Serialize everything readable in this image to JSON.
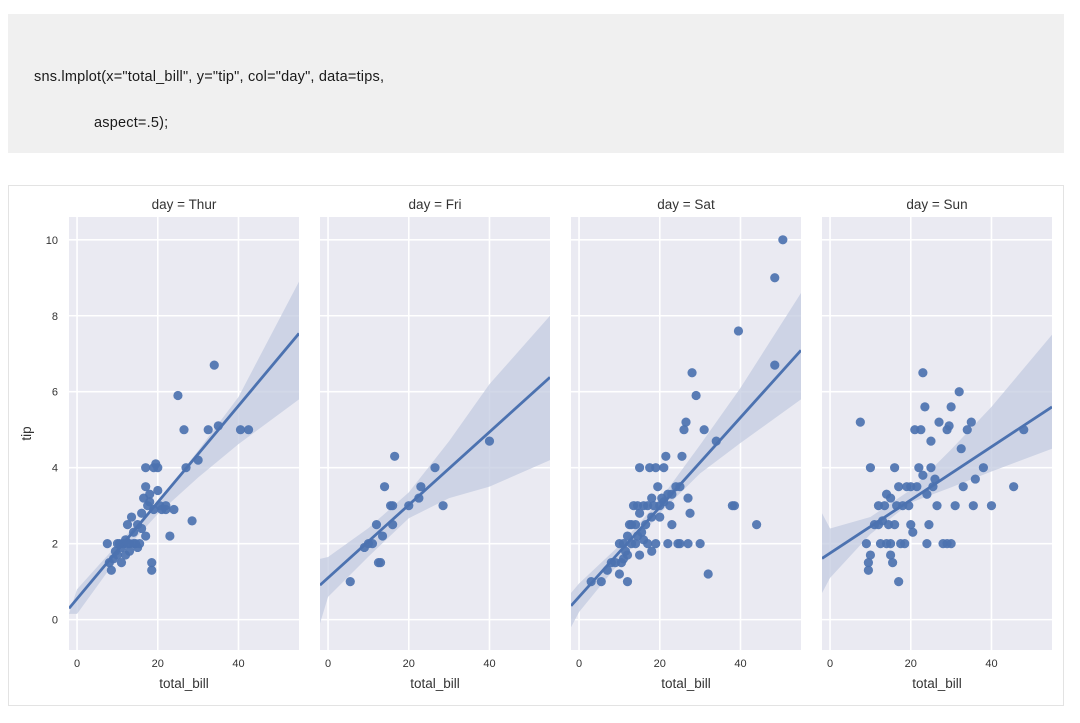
{
  "code": {
    "line1": "sns.lmplot(x=\"total_bill\", y=\"tip\", col=\"day\", data=tips,",
    "line2": "aspect=.5);"
  },
  "colors": {
    "panel_bg": "#eaeaf2",
    "grid": "#ffffff",
    "point": "#4c72b0",
    "line": "#4c72b0",
    "band": "#c3cbe0",
    "text": "#333333"
  },
  "chart_data": {
    "type": "scatter",
    "ylabel": "tip",
    "xlabel": "total_bill",
    "xlim": [
      -2,
      55
    ],
    "ylim": [
      -0.8,
      10.6
    ],
    "xticks": [
      0,
      20,
      40
    ],
    "yticks": [
      0,
      2,
      4,
      6,
      8,
      10
    ],
    "facets": [
      {
        "title": "day = Thur",
        "fit": {
          "intercept": 0.55,
          "slope": 0.127
        },
        "ci": [
          [
            -2,
            0.15,
            0.15
          ],
          [
            0,
            0.15,
            0.8
          ],
          [
            10,
            1.62,
            1.98
          ],
          [
            20,
            2.78,
            3.09
          ],
          [
            30,
            3.74,
            4.45
          ],
          [
            40,
            4.62,
            5.86
          ],
          [
            55,
            5.8,
            8.9
          ]
        ],
        "points": [
          [
            7.5,
            2
          ],
          [
            8,
            1.5
          ],
          [
            8.5,
            1.3
          ],
          [
            9,
            1.6
          ],
          [
            9.5,
            1.8
          ],
          [
            10,
            2
          ],
          [
            10,
            1.7
          ],
          [
            10.5,
            2
          ],
          [
            11,
            1.5
          ],
          [
            11,
            1.9
          ],
          [
            11.5,
            2
          ],
          [
            12,
            2.1
          ],
          [
            12,
            1.7
          ],
          [
            12.5,
            2
          ],
          [
            12.5,
            2.5
          ],
          [
            13,
            2
          ],
          [
            13,
            1.8
          ],
          [
            13.5,
            2.7
          ],
          [
            14,
            2.3
          ],
          [
            14,
            2
          ],
          [
            14.5,
            2
          ],
          [
            15,
            2.5
          ],
          [
            15,
            1.9
          ],
          [
            15.5,
            2
          ],
          [
            16,
            2.4
          ],
          [
            16,
            2.8
          ],
          [
            16.5,
            3.2
          ],
          [
            17,
            3.5
          ],
          [
            17,
            2.2
          ],
          [
            17,
            4
          ],
          [
            17.5,
            3
          ],
          [
            18,
            3.3
          ],
          [
            18,
            3.1
          ],
          [
            18.5,
            1.5
          ],
          [
            18.5,
            1.3
          ],
          [
            19,
            4
          ],
          [
            19,
            2.9
          ],
          [
            19.5,
            4.1
          ],
          [
            20,
            3.4
          ],
          [
            20,
            4
          ],
          [
            20.5,
            3
          ],
          [
            21,
            2.9
          ],
          [
            22,
            3
          ],
          [
            22,
            2.9
          ],
          [
            23,
            2.2
          ],
          [
            24,
            2.9
          ],
          [
            25,
            5.9
          ],
          [
            26.5,
            5
          ],
          [
            27,
            4
          ],
          [
            28.5,
            2.6
          ],
          [
            30,
            4.2
          ],
          [
            32.5,
            5
          ],
          [
            34,
            6.7
          ],
          [
            35,
            5.1
          ],
          [
            40.5,
            5
          ],
          [
            42.5,
            5
          ]
        ]
      },
      {
        "title": "day = Fri",
        "fit": {
          "intercept": 1.1,
          "slope": 0.096
        },
        "ci": [
          [
            -2,
            -0.1,
            1.6
          ],
          [
            0,
            0.6,
            1.65
          ],
          [
            10,
            1.66,
            2.41
          ],
          [
            20,
            2.67,
            3.35
          ],
          [
            30,
            3.2,
            4.7
          ],
          [
            40,
            3.5,
            6.2
          ],
          [
            55,
            4.2,
            8.0
          ]
        ],
        "points": [
          [
            5.5,
            1
          ],
          [
            9,
            1.9
          ],
          [
            10,
            2
          ],
          [
            11,
            2
          ],
          [
            12,
            2.5
          ],
          [
            12.5,
            1.5
          ],
          [
            13,
            1.5
          ],
          [
            13.5,
            2.2
          ],
          [
            14,
            3.5
          ],
          [
            15.5,
            3
          ],
          [
            16,
            3
          ],
          [
            16.5,
            4.3
          ],
          [
            16,
            2.5
          ],
          [
            20,
            3
          ],
          [
            22.5,
            3.2
          ],
          [
            23,
            3.5
          ],
          [
            26.5,
            4
          ],
          [
            28.5,
            3
          ],
          [
            40,
            4.7
          ]
        ]
      },
      {
        "title": "day = Sat",
        "fit": {
          "intercept": 0.6,
          "slope": 0.118
        },
        "ci": [
          [
            -2,
            -0.2,
            0.7
          ],
          [
            0,
            0.2,
            0.95
          ],
          [
            10,
            1.5,
            1.95
          ],
          [
            20,
            2.8,
            3.15
          ],
          [
            30,
            3.85,
            4.6
          ],
          [
            40,
            4.65,
            6.1
          ],
          [
            55,
            5.8,
            8.6
          ]
        ],
        "points": [
          [
            3,
            1
          ],
          [
            5.5,
            1
          ],
          [
            7,
            1.3
          ],
          [
            8,
            1.5
          ],
          [
            9,
            1.5
          ],
          [
            10,
            2
          ],
          [
            10,
            1.2
          ],
          [
            10.5,
            1.5
          ],
          [
            11,
            1.6
          ],
          [
            11,
            2
          ],
          [
            11.5,
            1.8
          ],
          [
            12,
            2.2
          ],
          [
            12,
            1
          ],
          [
            12,
            1.7
          ],
          [
            12.5,
            2.5
          ],
          [
            13,
            2.5
          ],
          [
            13,
            2
          ],
          [
            13.5,
            3
          ],
          [
            14,
            2
          ],
          [
            14,
            2.5
          ],
          [
            14.5,
            3
          ],
          [
            14.5,
            2.2
          ],
          [
            15,
            2.8
          ],
          [
            15,
            4
          ],
          [
            15,
            1.7
          ],
          [
            15.5,
            2.3
          ],
          [
            16,
            3
          ],
          [
            16,
            2.1
          ],
          [
            16.5,
            2.5
          ],
          [
            17,
            3
          ],
          [
            17,
            2
          ],
          [
            17.5,
            4
          ],
          [
            18,
            3.2
          ],
          [
            18,
            2.7
          ],
          [
            18,
            1.8
          ],
          [
            18.5,
            3
          ],
          [
            19,
            4
          ],
          [
            19,
            2
          ],
          [
            19.5,
            3.5
          ],
          [
            20,
            3
          ],
          [
            20,
            2.7
          ],
          [
            20.5,
            3.2
          ],
          [
            21,
            3.1
          ],
          [
            21,
            4
          ],
          [
            21.5,
            4.3
          ],
          [
            22,
            3.3
          ],
          [
            22,
            2
          ],
          [
            22.5,
            3
          ],
          [
            23,
            3.3
          ],
          [
            23,
            2.5
          ],
          [
            24,
            3.5
          ],
          [
            24.5,
            2
          ],
          [
            25,
            2
          ],
          [
            25,
            3.5
          ],
          [
            25.5,
            4.3
          ],
          [
            26,
            5
          ],
          [
            26.5,
            5.2
          ],
          [
            27,
            3.2
          ],
          [
            27,
            2
          ],
          [
            27.5,
            2.8
          ],
          [
            28,
            6.5
          ],
          [
            29,
            5.9
          ],
          [
            30,
            2
          ],
          [
            31,
            5
          ],
          [
            32,
            1.2
          ],
          [
            34,
            4.7
          ],
          [
            38,
            3
          ],
          [
            38.5,
            3
          ],
          [
            39.5,
            7.6
          ],
          [
            44,
            2.5
          ],
          [
            48.5,
            6.7
          ],
          [
            48.5,
            9
          ],
          [
            50.5,
            10
          ]
        ]
      },
      {
        "title": "day = Sun",
        "fit": {
          "intercept": 1.75,
          "slope": 0.07
        },
        "ci": [
          [
            -2,
            0.7,
            2.8
          ],
          [
            0,
            1.1,
            2.4
          ],
          [
            10,
            2.25,
            2.7
          ],
          [
            20,
            3.08,
            3.42
          ],
          [
            30,
            3.48,
            4.48
          ],
          [
            40,
            3.9,
            5.6
          ],
          [
            55,
            4.5,
            7.5
          ]
        ],
        "points": [
          [
            7.5,
            5.2
          ],
          [
            9,
            2
          ],
          [
            9.5,
            1.5
          ],
          [
            9.5,
            1.3
          ],
          [
            10,
            4
          ],
          [
            10,
            1.7
          ],
          [
            11,
            2.5
          ],
          [
            12,
            3
          ],
          [
            12,
            2.5
          ],
          [
            12.5,
            2
          ],
          [
            13,
            2.6
          ],
          [
            13.5,
            3
          ],
          [
            14,
            2
          ],
          [
            14,
            3.3
          ],
          [
            14.5,
            2.5
          ],
          [
            15,
            1.7
          ],
          [
            15,
            3.2
          ],
          [
            15,
            2
          ],
          [
            15.5,
            1.5
          ],
          [
            16,
            2.5
          ],
          [
            16,
            4
          ],
          [
            16.5,
            3
          ],
          [
            17,
            3.5
          ],
          [
            17,
            1
          ],
          [
            17.5,
            2
          ],
          [
            18,
            3
          ],
          [
            18.5,
            2
          ],
          [
            19,
            3.5
          ],
          [
            19.5,
            3
          ],
          [
            20,
            2.5
          ],
          [
            20,
            3.5
          ],
          [
            20.5,
            2.3
          ],
          [
            21,
            5
          ],
          [
            21.5,
            3.5
          ],
          [
            22,
            4
          ],
          [
            22.5,
            5
          ],
          [
            23,
            6.5
          ],
          [
            23,
            3.8
          ],
          [
            23.5,
            5.6
          ],
          [
            24,
            3.3
          ],
          [
            24,
            2
          ],
          [
            24.5,
            2.5
          ],
          [
            25,
            4
          ],
          [
            25,
            4.7
          ],
          [
            25.5,
            3.5
          ],
          [
            26,
            3.7
          ],
          [
            26.5,
            3
          ],
          [
            27,
            5.2
          ],
          [
            28,
            2
          ],
          [
            29,
            5
          ],
          [
            29,
            2
          ],
          [
            29.5,
            5.1
          ],
          [
            30,
            5.6
          ],
          [
            30,
            2
          ],
          [
            31,
            3
          ],
          [
            32,
            6
          ],
          [
            32.5,
            4.5
          ],
          [
            33,
            3.5
          ],
          [
            34,
            5
          ],
          [
            35,
            5.2
          ],
          [
            35.5,
            3
          ],
          [
            36,
            3.7
          ],
          [
            38,
            4
          ],
          [
            40,
            3
          ],
          [
            45.5,
            3.5
          ],
          [
            48,
            5
          ]
        ]
      }
    ]
  }
}
